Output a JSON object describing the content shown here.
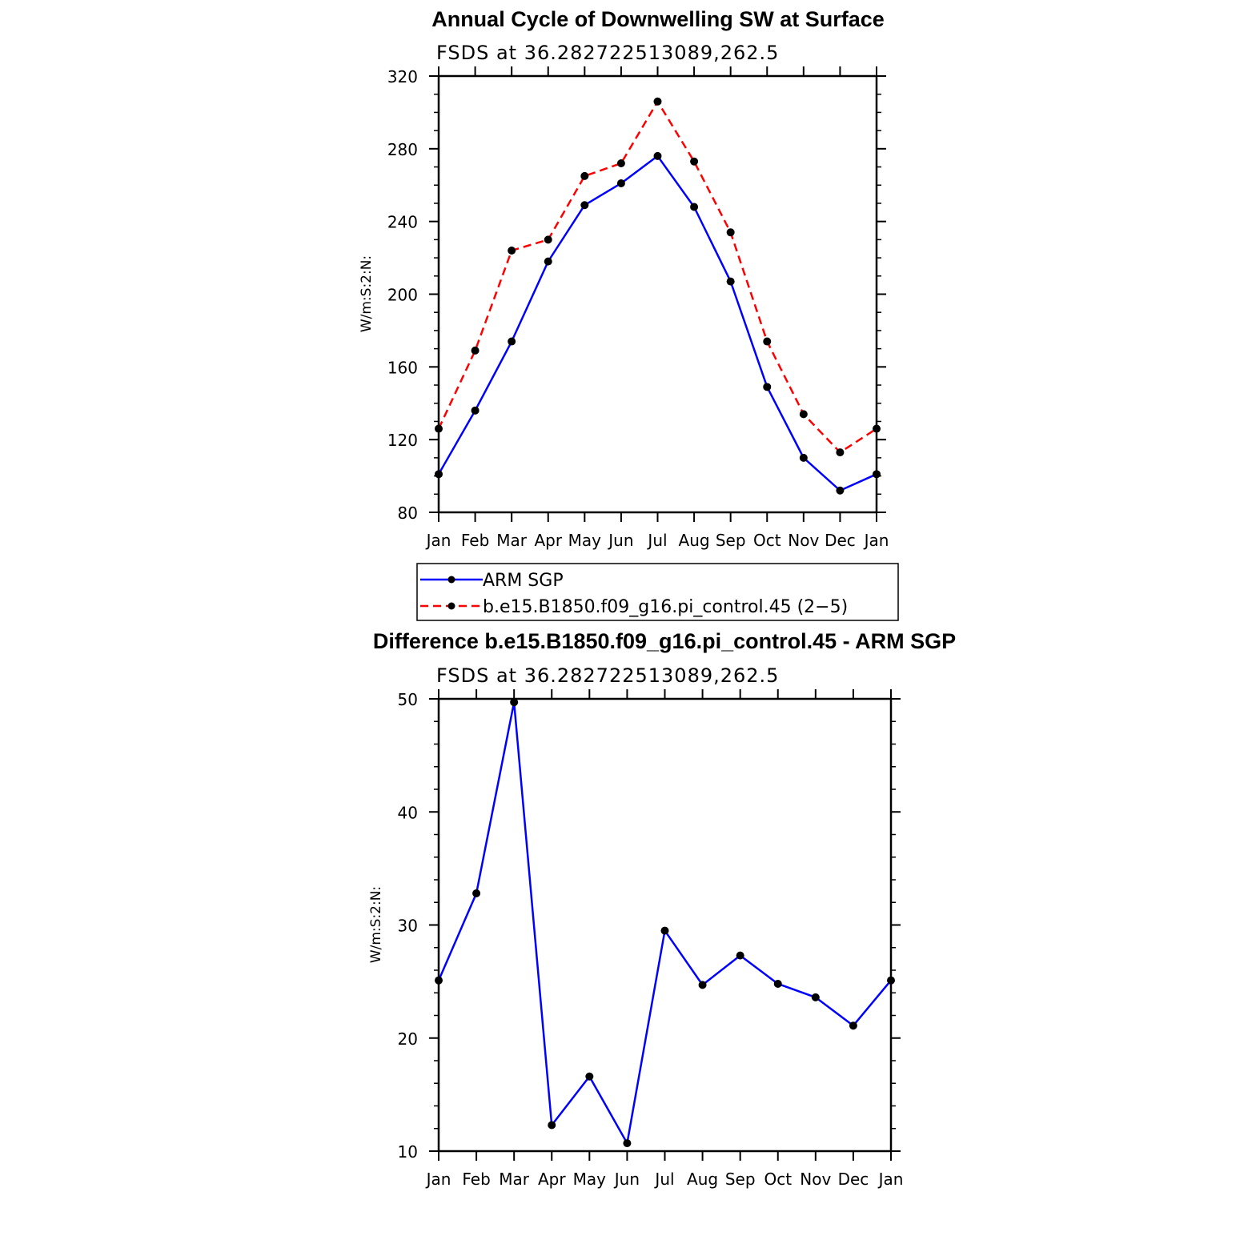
{
  "chart_data": [
    {
      "type": "line",
      "title": "Annual Cycle of Downwelling SW at Surface",
      "subtitle": "FSDS at 36.282722513089,262.5",
      "xlabel": "",
      "ylabel": "W/m:S:2:N:",
      "categories": [
        "Jan",
        "Feb",
        "Mar",
        "Apr",
        "May",
        "Jun",
        "Jul",
        "Aug",
        "Sep",
        "Oct",
        "Nov",
        "Dec",
        "Jan"
      ],
      "ylim": [
        80,
        320
      ],
      "yticks": [
        80,
        120,
        160,
        200,
        240,
        280,
        320
      ],
      "grid": false,
      "legend": "below",
      "series": [
        {
          "name": "ARM SGP",
          "color": "#0000ff",
          "dash": "solid",
          "values": [
            101,
            136,
            174,
            218,
            249,
            261,
            276,
            248,
            207,
            149,
            110,
            92,
            101
          ]
        },
        {
          "name": "b.e15.B1850.f09_g16.pi_control.45 (2−5)",
          "color": "#ff0000",
          "dash": "dashed",
          "values": [
            126,
            169,
            224,
            230,
            265,
            272,
            306,
            273,
            234,
            174,
            134,
            113,
            126
          ]
        }
      ]
    },
    {
      "type": "line",
      "title": "Difference b.e15.B1850.f09_g16.pi_control.45 - ARM SGP",
      "subtitle": "FSDS at 36.282722513089,262.5",
      "xlabel": "",
      "ylabel": "W/m:S:2:N:",
      "categories": [
        "Jan",
        "Feb",
        "Mar",
        "Apr",
        "May",
        "Jun",
        "Jul",
        "Aug",
        "Sep",
        "Oct",
        "Nov",
        "Dec",
        "Jan"
      ],
      "ylim": [
        10,
        50
      ],
      "yticks": [
        10,
        20,
        30,
        40,
        50
      ],
      "grid": false,
      "series": [
        {
          "color": "#0000ff",
          "dash": "solid",
          "values": [
            25.1,
            32.8,
            49.7,
            12.3,
            16.6,
            10.7,
            29.5,
            24.7,
            27.3,
            24.8,
            23.6,
            21.1,
            25.1
          ]
        }
      ]
    }
  ]
}
